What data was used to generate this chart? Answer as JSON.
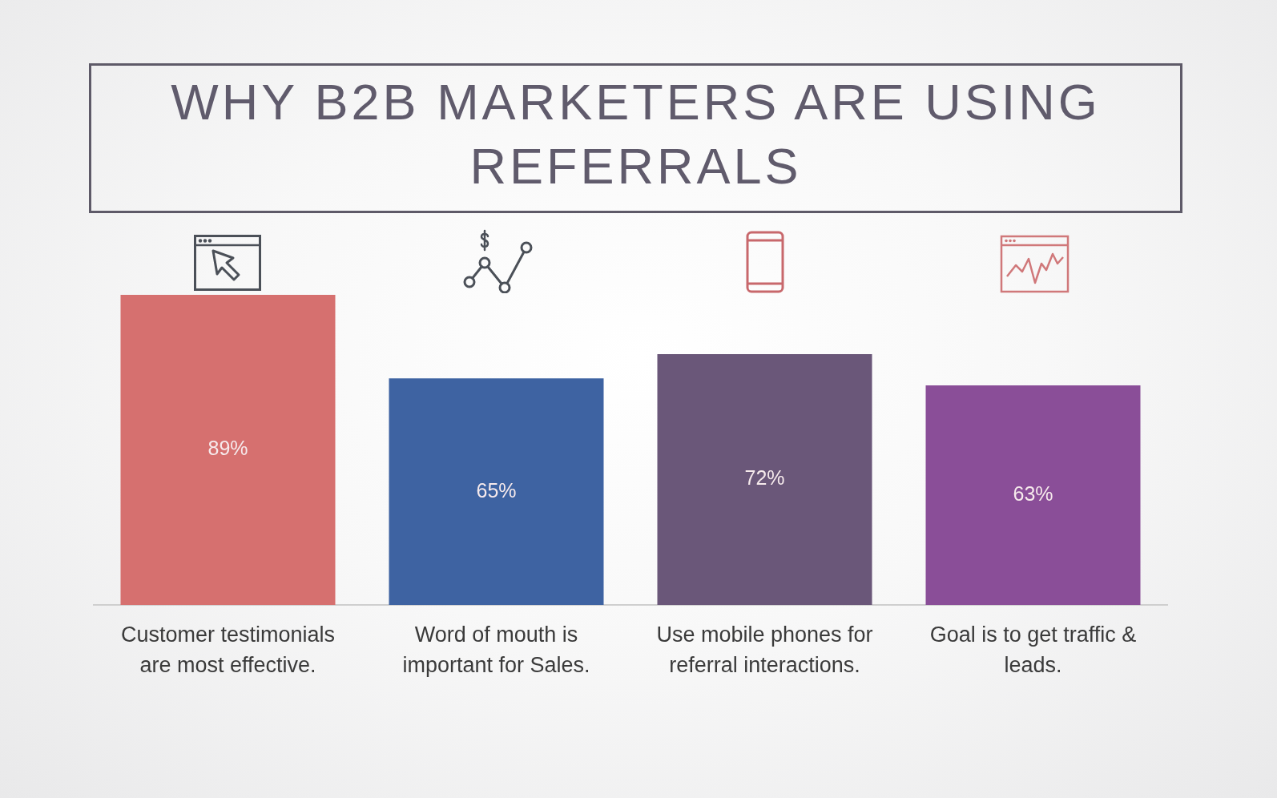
{
  "chart_data": {
    "type": "bar",
    "title": "WHY B2B MARKETERS ARE USING REFERRALS",
    "categories": [
      "Customer testimonials are most effective.",
      "Word of mouth is important for Sales.",
      "Use mobile phones for referral interactions.",
      "Goal is to get traffic & leads."
    ],
    "values": [
      89,
      65,
      72,
      63
    ],
    "colors": [
      "#d6706f",
      "#3e63a2",
      "#6a5779",
      "#8a4e98"
    ],
    "value_labels": [
      "89%",
      "65%",
      "72%",
      "63%"
    ],
    "tick_labels": "x"
  }
}
